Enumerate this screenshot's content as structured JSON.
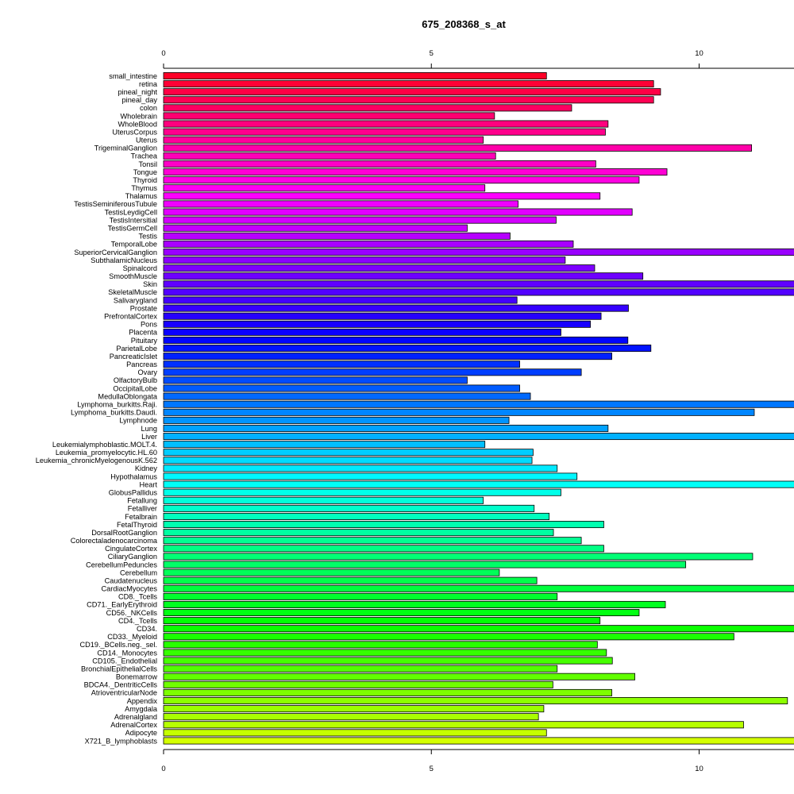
{
  "chart_data": {
    "type": "bar",
    "orientation": "horizontal",
    "title": "675_208368_s_at",
    "xlabel": "",
    "ylabel": "",
    "xlim": [
      0,
      22.6
    ],
    "xticks": [
      0,
      5,
      10,
      15,
      20
    ],
    "grid": false,
    "legend": "none",
    "categories": [
      "small_intestine",
      "retina",
      "pineal_night",
      "pineal_day",
      "colon",
      "Wholebrain",
      "WholeBlood",
      "UterusCorpus",
      "Uterus",
      "TrigeminalGanglion",
      "Trachea",
      "Tonsil",
      "Tongue",
      "Thyroid",
      "Thymus",
      "Thalamus",
      "TestisSeminiferousTubule",
      "TestisLeydigCell",
      "TestisIntersitial",
      "TestisGermCell",
      "Testis",
      "TemporalLobe",
      "SuperiorCervicalGanglion",
      "SubthalamicNucleus",
      "Spinalcord",
      "SmoothMuscle",
      "Skin",
      "SkeletalMuscle",
      "Salivarygland",
      "Prostate",
      "PrefrontalCortex",
      "Pons",
      "Placenta",
      "Pituitary",
      "ParietalLobe",
      "PancreaticIslet",
      "Pancreas",
      "Ovary",
      "OlfactoryBulb",
      "OccipitalLobe",
      "MedullaOblongata",
      "Lymphoma_burkitts.Raji.",
      "Lymphoma_burkitts.Daudi.",
      "Lymphnode",
      "Lung",
      "Liver",
      "Leukemialymphoblastic.MOLT.4.",
      "Leukemia_promyelocytic.HL.60",
      "Leukemia_chronicMyelogenousK.562",
      "Kidney",
      "Hypothalamus",
      "Heart",
      "GlobusPallidus",
      "Fetallung",
      "Fetalliver",
      "Fetalbrain",
      "FetalThyroid",
      "DorsalRootGanglion",
      "Colorectaladenocarcinoma",
      "CingulateCortex",
      "CiliaryGanglion",
      "CerebellumPeduncles",
      "Cerebellum",
      "Caudatenucleus",
      "CardiacMyocytes",
      "CD8._Tcells",
      "CD71._EarlyErythroid",
      "CD56._NKCells",
      "CD4._Tcells",
      "CD34.",
      "CD33._Myeloid",
      "CD19._BCells.neg._sel.",
      "CD14._Monocytes",
      "CD105._Endothelial",
      "BronchialEpithelialCells",
      "Bonemarrow",
      "BDCA4._DentriticCells",
      "AtrioventricularNode",
      "Appendix",
      "Amygdala",
      "Adrenalgland",
      "AdrenalCortex",
      "Adipocyte",
      "X721_B_lymphoblasts"
    ],
    "values": [
      7.15,
      9.15,
      9.28,
      9.15,
      7.62,
      6.18,
      8.3,
      8.25,
      5.97,
      10.98,
      6.2,
      8.07,
      9.4,
      8.88,
      6.0,
      8.15,
      6.62,
      8.75,
      7.33,
      5.67,
      6.47,
      7.65,
      14.85,
      7.5,
      8.05,
      8.95,
      12.02,
      16.53,
      6.6,
      8.68,
      8.17,
      7.97,
      7.42,
      8.67,
      9.1,
      8.37,
      6.65,
      7.8,
      5.67,
      6.65,
      6.85,
      12.45,
      11.03,
      6.45,
      8.3,
      12.87,
      6.0,
      6.9,
      6.88,
      7.35,
      7.72,
      16.02,
      7.42,
      5.97,
      6.92,
      7.2,
      8.22,
      7.28,
      7.8,
      8.22,
      11.0,
      9.75,
      6.27,
      6.97,
      22.7,
      7.35,
      9.37,
      8.88,
      8.15,
      12.1,
      10.65,
      8.1,
      8.27,
      8.38,
      7.35,
      8.8,
      7.27,
      8.37,
      11.65,
      7.1,
      7.0,
      10.83,
      7.15,
      18.17
    ],
    "colors": [
      "#ff0028",
      "#ff0036",
      "#ff0045",
      "#ff0053",
      "#ff0061",
      "#ff0070",
      "#ff007e",
      "#ff008c",
      "#ff009b",
      "#ff00a9",
      "#ff00b7",
      "#ff00c6",
      "#ff00d4",
      "#ff00e2",
      "#ff00f1",
      "#fe00ff",
      "#ef00ff",
      "#e100ff",
      "#d300ff",
      "#c400ff",
      "#b600ff",
      "#a800ff",
      "#9900ff",
      "#8b00ff",
      "#7d00ff",
      "#6e00ff",
      "#6000ff",
      "#5200ff",
      "#4300ff",
      "#3500ff",
      "#2600ff",
      "#1800ff",
      "#0a00ff",
      "#0005ff",
      "#0013ff",
      "#0021ff",
      "#0030ff",
      "#003eff",
      "#004cff",
      "#005bff",
      "#0069ff",
      "#0077ff",
      "#0086ff",
      "#0094ff",
      "#00a2ff",
      "#00b1ff",
      "#00bfff",
      "#00cdff",
      "#00dcff",
      "#00eaff",
      "#00f8ff",
      "#00fff7",
      "#00ffe9",
      "#00ffdb",
      "#00ffcc",
      "#00ffbe",
      "#00ffb0",
      "#00ffa1",
      "#00ff93",
      "#00ff85",
      "#00ff76",
      "#00ff68",
      "#00ff59",
      "#00ff4b",
      "#00ff3d",
      "#00ff2e",
      "#00ff20",
      "#00ff12",
      "#00ff03",
      "#0bff00",
      "#1aff00",
      "#28ff00",
      "#36ff00",
      "#45ff00",
      "#53ff00",
      "#61ff00",
      "#70ff00",
      "#7eff00",
      "#8cff00",
      "#9bff00",
      "#a9ff00",
      "#b7ff00",
      "#c6ff00",
      "#d4ff00"
    ]
  }
}
